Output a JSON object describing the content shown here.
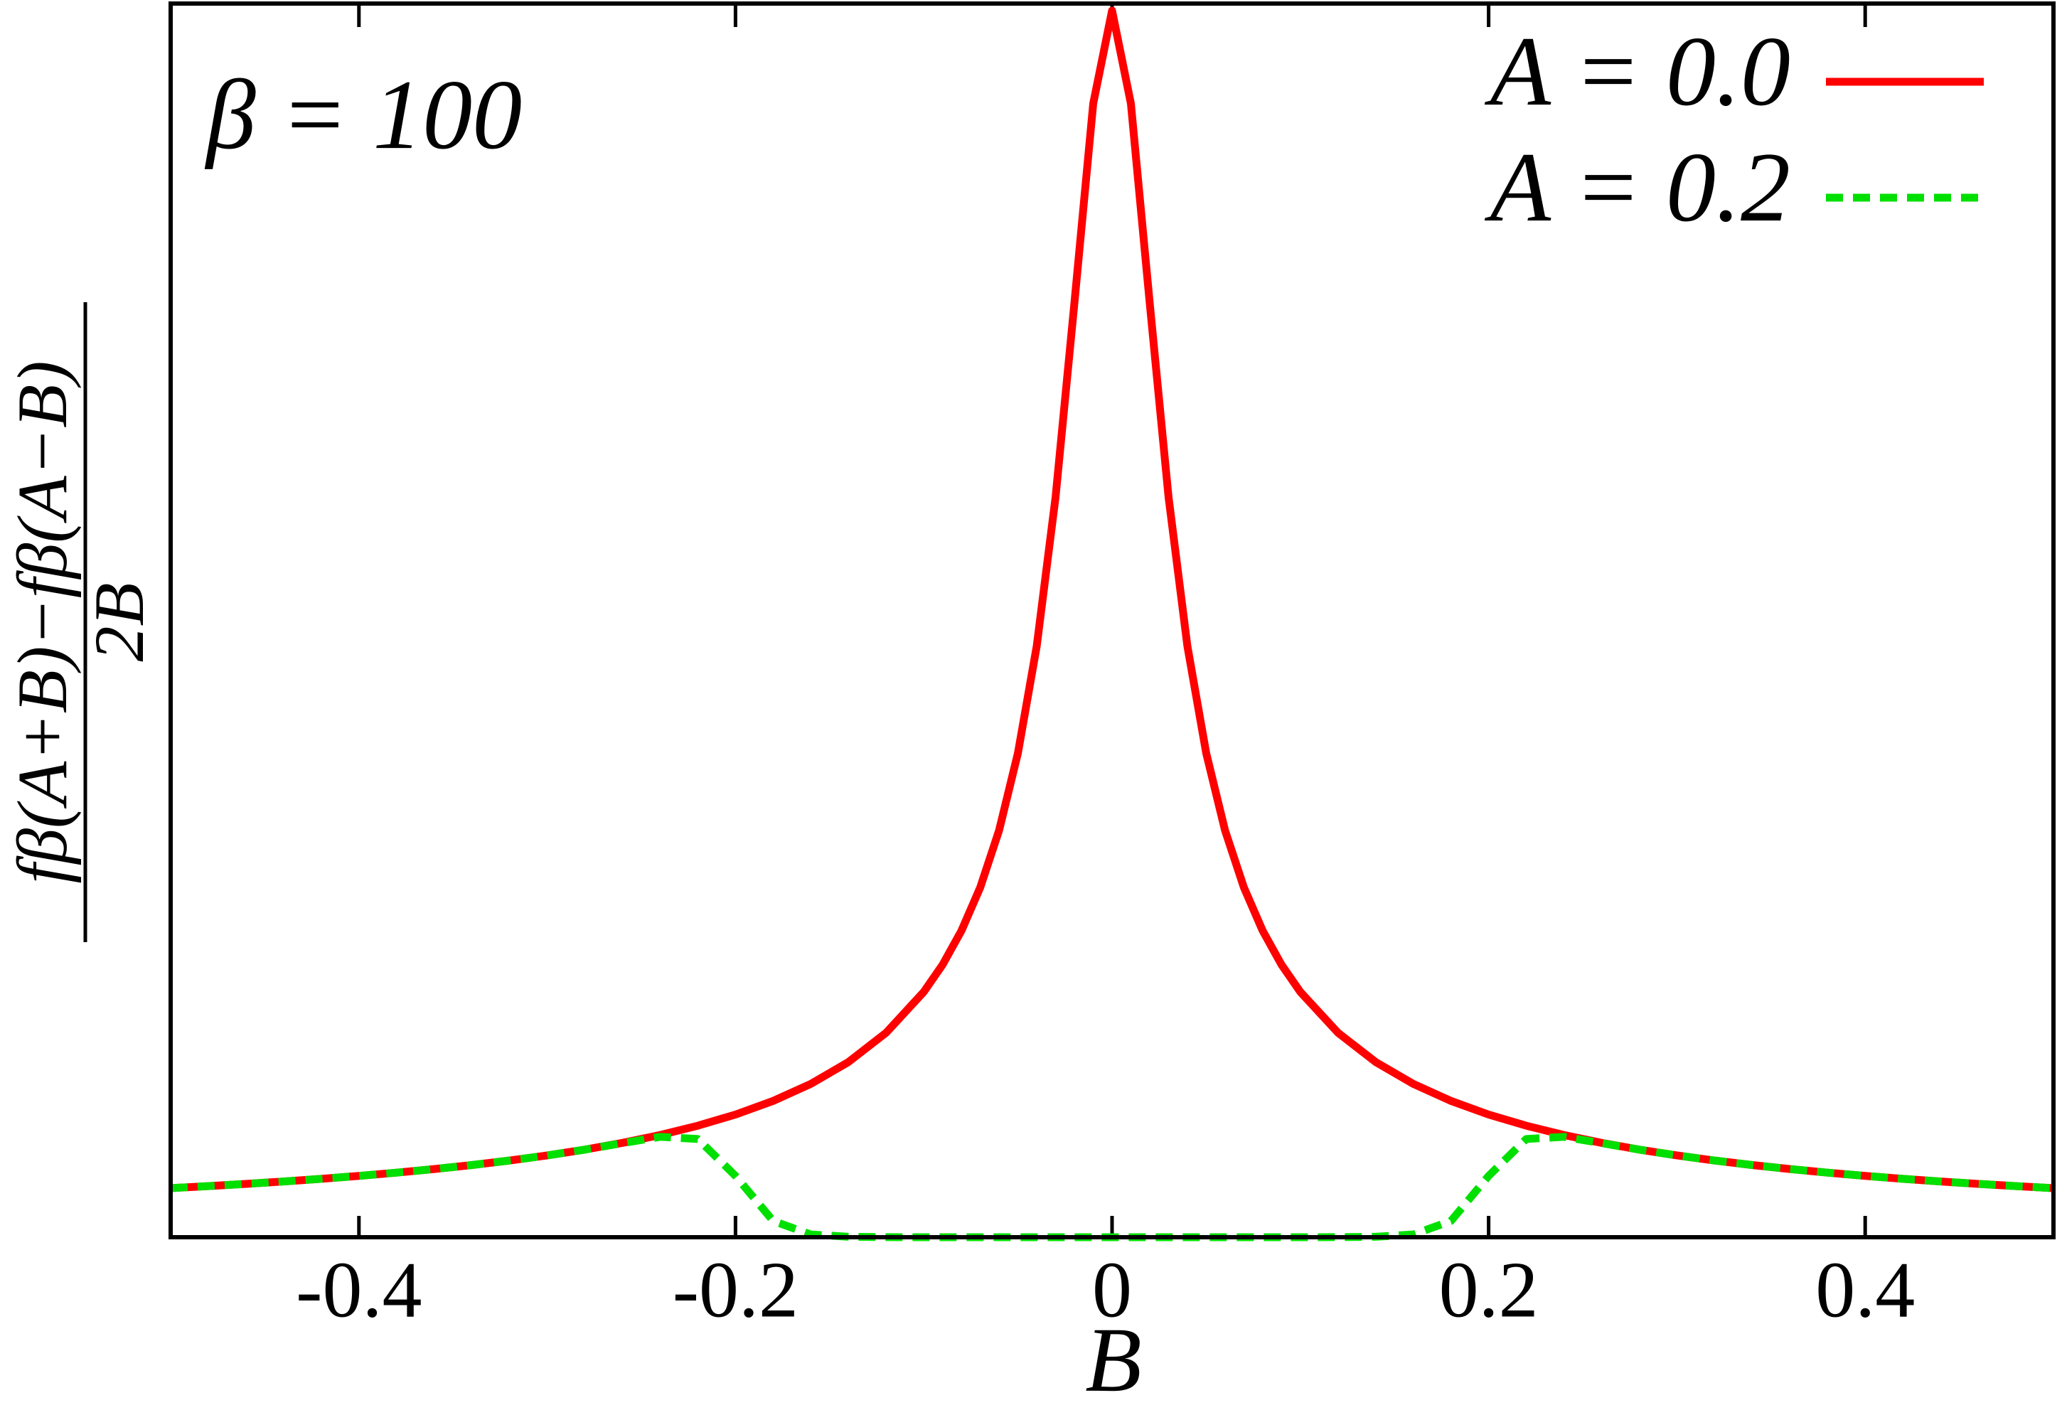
{
  "chart_data": {
    "type": "line",
    "annotation": "β = 100",
    "x_label": "B",
    "y_label": {
      "numerator": "fβ(A+B)−fβ(A−B)",
      "denominator": "2B"
    },
    "x": [
      -0.5,
      -0.48,
      -0.46,
      -0.44,
      -0.42,
      -0.4,
      -0.38,
      -0.36,
      -0.34,
      -0.32,
      -0.3,
      -0.28,
      -0.26,
      -0.24,
      -0.22,
      -0.2,
      -0.18,
      -0.16,
      -0.14,
      -0.12,
      -0.1,
      -0.09,
      -0.08,
      -0.07,
      -0.06,
      -0.05,
      -0.04,
      -0.03,
      -0.02,
      -0.01,
      0,
      0.01,
      0.02,
      0.03,
      0.04,
      0.05,
      0.06,
      0.07,
      0.08,
      0.09,
      0.1,
      0.12,
      0.14,
      0.16,
      0.18,
      0.2,
      0.22,
      0.24,
      0.26,
      0.28,
      0.3,
      0.32,
      0.34,
      0.36,
      0.38,
      0.4,
      0.42,
      0.44,
      0.46,
      0.48,
      0.5
    ],
    "series": [
      {
        "name": "A = 0.0",
        "color": "#ff0000",
        "dash": false,
        "values": [
          1.0,
          1.042,
          1.087,
          1.136,
          1.19,
          1.25,
          1.316,
          1.389,
          1.471,
          1.563,
          1.667,
          1.786,
          1.923,
          2.083,
          2.273,
          2.5,
          2.778,
          3.125,
          3.571,
          4.167,
          5.0,
          5.554,
          6.246,
          7.13,
          8.292,
          9.866,
          12.05,
          15.086,
          19.04,
          23.106,
          25,
          23.106,
          19.04,
          15.086,
          12.05,
          9.866,
          8.292,
          7.13,
          6.246,
          5.554,
          5.0,
          4.167,
          3.571,
          3.125,
          2.778,
          2.5,
          2.273,
          2.083,
          1.923,
          1.786,
          1.667,
          1.563,
          1.471,
          1.389,
          1.316,
          1.25,
          1.19,
          1.136,
          1.087,
          1.042,
          1.0
        ]
      },
      {
        "name": "A = 0.2",
        "color": "#00e000",
        "dash": true,
        "values": [
          1.0,
          1.042,
          1.087,
          1.136,
          1.19,
          1.25,
          1.316,
          1.389,
          1.471,
          1.563,
          1.667,
          1.785,
          1.918,
          2.046,
          2.002,
          1.25,
          0.331,
          0.056,
          0.009,
          0.001,
          0,
          0,
          0,
          0,
          0,
          0,
          0,
          0,
          0,
          0,
          0,
          0,
          0,
          0,
          0,
          0,
          0,
          0,
          0,
          0,
          0,
          0.001,
          0.009,
          0.056,
          0.331,
          1.25,
          2.002,
          2.046,
          1.918,
          1.785,
          1.667,
          1.563,
          1.471,
          1.389,
          1.316,
          1.25,
          1.19,
          1.136,
          1.087,
          1.042,
          1.0
        ]
      }
    ],
    "xlim": [
      -0.5,
      0.5
    ],
    "xticks": [
      -0.4,
      -0.2,
      0,
      0.2,
      0.4
    ],
    "ylim": [
      0,
      25.1
    ],
    "legend": "upper right"
  }
}
